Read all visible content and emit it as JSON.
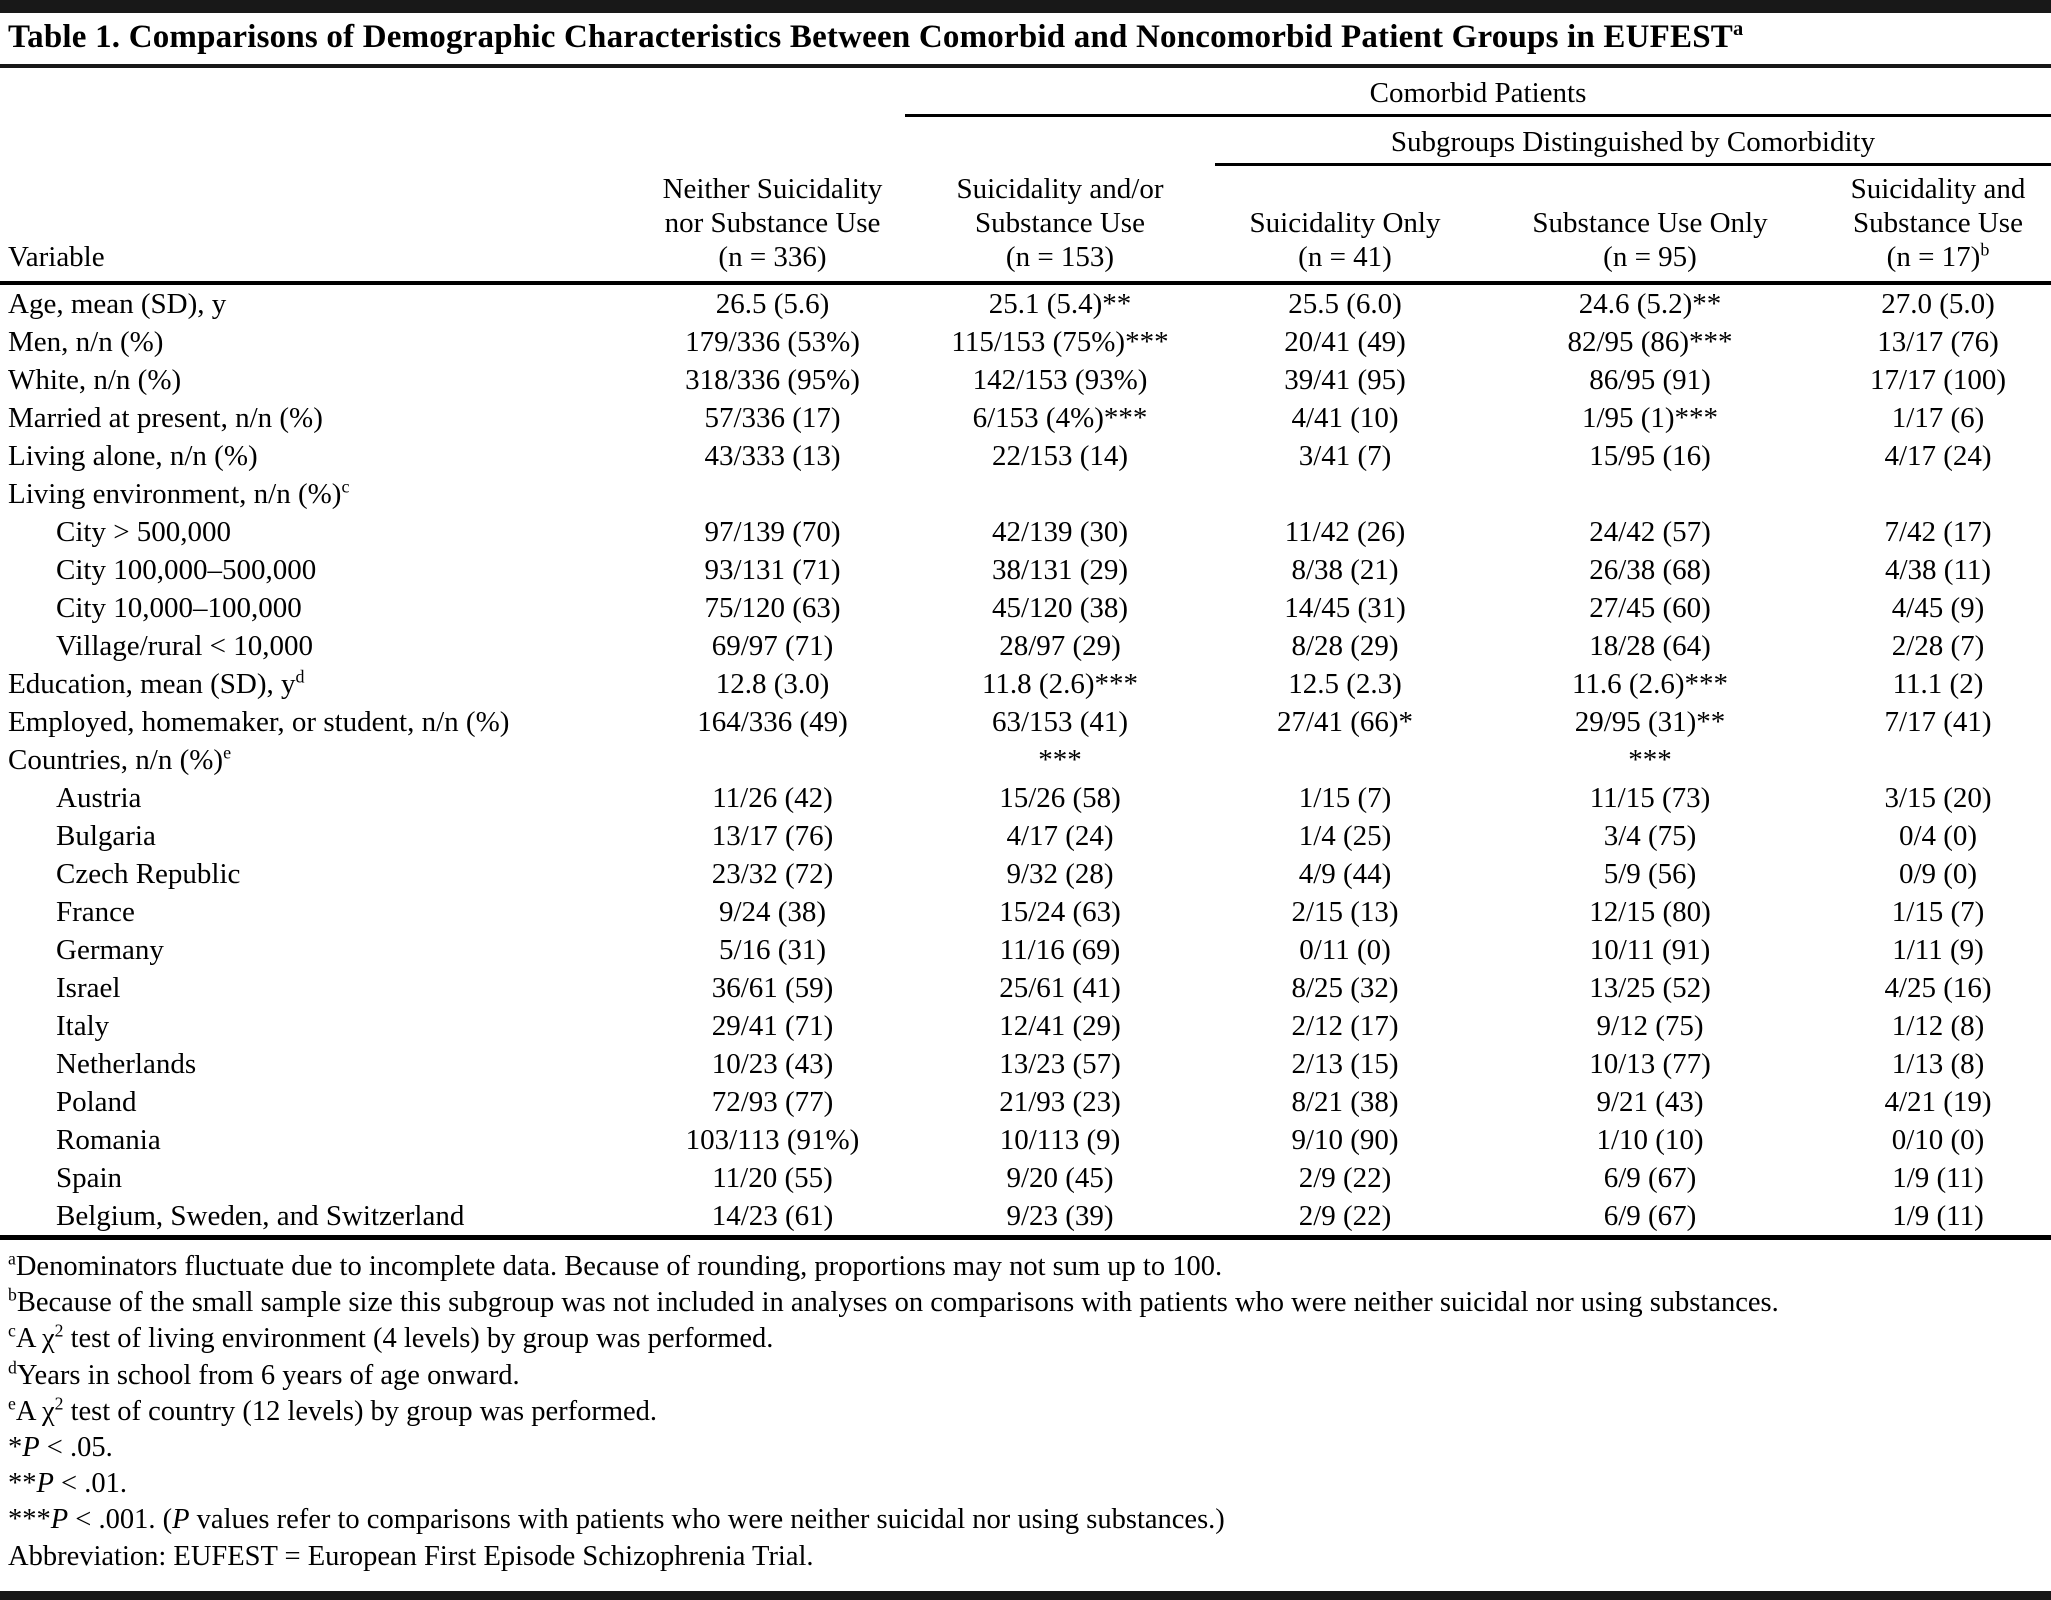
{
  "colors": {
    "text": "#000000",
    "rule": "#181818",
    "background": "#ffffff"
  },
  "title": {
    "text": "Table 1. Comparisons of Demographic Characteristics Between Comorbid and Noncomorbid Patient Groups in EUFEST",
    "sup": "a"
  },
  "header": {
    "spanner_comorbid": "Comorbid Patients",
    "spanner_subgroups": "Subgroups Distinguished by Comorbidity",
    "variable_label": "Variable",
    "columns": [
      {
        "lines": [
          "Neither Suicidality",
          "nor Substance Use",
          "(n = 336)"
        ],
        "sup": ""
      },
      {
        "lines": [
          "Suicidality and/or",
          "Substance Use",
          "(n = 153)"
        ],
        "sup": ""
      },
      {
        "lines": [
          "Suicidality Only",
          "(n = 41)"
        ],
        "sup": ""
      },
      {
        "lines": [
          "Substance Use Only",
          "(n = 95)"
        ],
        "sup": ""
      },
      {
        "lines": [
          "Suicidality and",
          "Substance Use",
          "(n = 17)"
        ],
        "sup": "b"
      }
    ]
  },
  "rows": [
    {
      "label": "Age, mean (SD), y",
      "sup": "",
      "indent": 0,
      "cells": [
        "26.5 (5.6)",
        "25.1 (5.4)**",
        "25.5 (6.0)",
        "24.6 (5.2)**",
        "27.0 (5.0)"
      ]
    },
    {
      "label": "Men, n/n (%)",
      "sup": "",
      "indent": 0,
      "cells": [
        "179/336 (53%)",
        "115/153 (75%)***",
        "20/41 (49)",
        "82/95 (86)***",
        "13/17 (76)"
      ]
    },
    {
      "label": "White, n/n (%)",
      "sup": "",
      "indent": 0,
      "cells": [
        "318/336 (95%)",
        "142/153 (93%)",
        "39/41 (95)",
        "86/95 (91)",
        "17/17 (100)"
      ]
    },
    {
      "label": "Married at present, n/n (%)",
      "sup": "",
      "indent": 0,
      "cells": [
        "57/336 (17)",
        "6/153 (4%)***",
        "4/41 (10)",
        "1/95 (1)***",
        "1/17 (6)"
      ]
    },
    {
      "label": "Living alone, n/n (%)",
      "sup": "",
      "indent": 0,
      "cells": [
        "43/333 (13)",
        "22/153 (14)",
        "3/41 (7)",
        "15/95 (16)",
        "4/17 (24)"
      ]
    },
    {
      "label": "Living environment, n/n (%)",
      "sup": "c",
      "indent": 0,
      "cells": [
        "",
        "",
        "",
        "",
        ""
      ]
    },
    {
      "label": "City > 500,000",
      "sup": "",
      "indent": 1,
      "cells": [
        "97/139 (70)",
        "42/139 (30)",
        "11/42 (26)",
        "24/42 (57)",
        "7/42 (17)"
      ]
    },
    {
      "label": "City 100,000–500,000",
      "sup": "",
      "indent": 1,
      "cells": [
        "93/131 (71)",
        "38/131 (29)",
        "8/38 (21)",
        "26/38 (68)",
        "4/38 (11)"
      ]
    },
    {
      "label": "City 10,000–100,000",
      "sup": "",
      "indent": 1,
      "cells": [
        "75/120 (63)",
        "45/120 (38)",
        "14/45 (31)",
        "27/45 (60)",
        "4/45 (9)"
      ]
    },
    {
      "label": "Village/rural < 10,000",
      "sup": "",
      "indent": 1,
      "cells": [
        "69/97 (71)",
        "28/97 (29)",
        "8/28 (29)",
        "18/28 (64)",
        "2/28 (7)"
      ]
    },
    {
      "label": "Education, mean (SD), y",
      "sup": "d",
      "indent": 0,
      "cells": [
        "12.8 (3.0)",
        "11.8 (2.6)***",
        "12.5 (2.3)",
        "11.6 (2.6)***",
        "11.1 (2)"
      ]
    },
    {
      "label": "Employed, homemaker, or student, n/n (%)",
      "sup": "",
      "indent": 0,
      "cells": [
        "164/336 (49)",
        "63/153 (41)",
        "27/41 (66)*",
        "29/95 (31)**",
        "7/17 (41)"
      ]
    },
    {
      "label": "Countries, n/n (%)",
      "sup": "e",
      "indent": 0,
      "cells": [
        "",
        "***",
        "",
        "***",
        ""
      ]
    },
    {
      "label": "Austria",
      "sup": "",
      "indent": 1,
      "cells": [
        "11/26 (42)",
        "15/26 (58)",
        "1/15 (7)",
        "11/15 (73)",
        "3/15 (20)"
      ]
    },
    {
      "label": "Bulgaria",
      "sup": "",
      "indent": 1,
      "cells": [
        "13/17 (76)",
        "4/17 (24)",
        "1/4 (25)",
        "3/4 (75)",
        "0/4 (0)"
      ]
    },
    {
      "label": "Czech Republic",
      "sup": "",
      "indent": 1,
      "cells": [
        "23/32 (72)",
        "9/32 (28)",
        "4/9 (44)",
        "5/9 (56)",
        "0/9 (0)"
      ]
    },
    {
      "label": "France",
      "sup": "",
      "indent": 1,
      "cells": [
        "9/24 (38)",
        "15/24 (63)",
        "2/15 (13)",
        "12/15 (80)",
        "1/15 (7)"
      ]
    },
    {
      "label": "Germany",
      "sup": "",
      "indent": 1,
      "cells": [
        "5/16 (31)",
        "11/16 (69)",
        "0/11 (0)",
        "10/11 (91)",
        "1/11 (9)"
      ]
    },
    {
      "label": "Israel",
      "sup": "",
      "indent": 1,
      "cells": [
        "36/61 (59)",
        "25/61 (41)",
        "8/25 (32)",
        "13/25 (52)",
        "4/25 (16)"
      ]
    },
    {
      "label": "Italy",
      "sup": "",
      "indent": 1,
      "cells": [
        "29/41 (71)",
        "12/41 (29)",
        "2/12 (17)",
        "9/12 (75)",
        "1/12 (8)"
      ]
    },
    {
      "label": "Netherlands",
      "sup": "",
      "indent": 1,
      "cells": [
        "10/23 (43)",
        "13/23 (57)",
        "2/13 (15)",
        "10/13 (77)",
        "1/13 (8)"
      ]
    },
    {
      "label": "Poland",
      "sup": "",
      "indent": 1,
      "cells": [
        "72/93 (77)",
        "21/93 (23)",
        "8/21 (38)",
        "9/21 (43)",
        "4/21 (19)"
      ]
    },
    {
      "label": "Romania",
      "sup": "",
      "indent": 1,
      "cells": [
        "103/113 (91%)",
        "10/113 (9)",
        "9/10 (90)",
        "1/10 (10)",
        "0/10 (0)"
      ]
    },
    {
      "label": "Spain",
      "sup": "",
      "indent": 1,
      "cells": [
        "11/20 (55)",
        "9/20 (45)",
        "2/9 (22)",
        "6/9 (67)",
        "1/9 (11)"
      ]
    },
    {
      "label": "Belgium, Sweden, and Switzerland",
      "sup": "",
      "indent": 1,
      "cells": [
        "14/23 (61)",
        "9/23 (39)",
        "2/9 (22)",
        "6/9 (67)",
        "1/9 (11)"
      ]
    }
  ],
  "footnotes": [
    [
      {
        "s": "sup",
        "t": "a"
      },
      {
        "s": "p",
        "t": "Denominators fluctuate due to incomplete data. Because of rounding, proportions may not sum up to 100."
      }
    ],
    [
      {
        "s": "sup",
        "t": "b"
      },
      {
        "s": "p",
        "t": "Because of the small sample size this subgroup was not included in analyses on comparisons with patients who were neither suicidal nor using substances."
      }
    ],
    [
      {
        "s": "sup",
        "t": "c"
      },
      {
        "s": "p",
        "t": "A χ"
      },
      {
        "s": "sup",
        "t": "2"
      },
      {
        "s": "p",
        "t": " test of living environment (4 levels) by group was performed."
      }
    ],
    [
      {
        "s": "sup",
        "t": "d"
      },
      {
        "s": "p",
        "t": "Years in school from 6 years of age onward."
      }
    ],
    [
      {
        "s": "sup",
        "t": "e"
      },
      {
        "s": "p",
        "t": "A χ"
      },
      {
        "s": "sup",
        "t": "2"
      },
      {
        "s": "p",
        "t": " test of country (12 levels) by group was performed."
      }
    ],
    [
      {
        "s": "p",
        "t": "*"
      },
      {
        "s": "i",
        "t": "P"
      },
      {
        "s": "p",
        "t": " < .05."
      }
    ],
    [
      {
        "s": "p",
        "t": "**"
      },
      {
        "s": "i",
        "t": "P"
      },
      {
        "s": "p",
        "t": " < .01."
      }
    ],
    [
      {
        "s": "p",
        "t": "***"
      },
      {
        "s": "i",
        "t": "P"
      },
      {
        "s": "p",
        "t": " < .001. ("
      },
      {
        "s": "i",
        "t": "P"
      },
      {
        "s": "p",
        "t": " values refer to comparisons with patients who were neither suicidal nor using substances.)"
      }
    ],
    [
      {
        "s": "p",
        "t": "Abbreviation: EUFEST = European First Episode Schizophrenia Trial."
      }
    ]
  ]
}
